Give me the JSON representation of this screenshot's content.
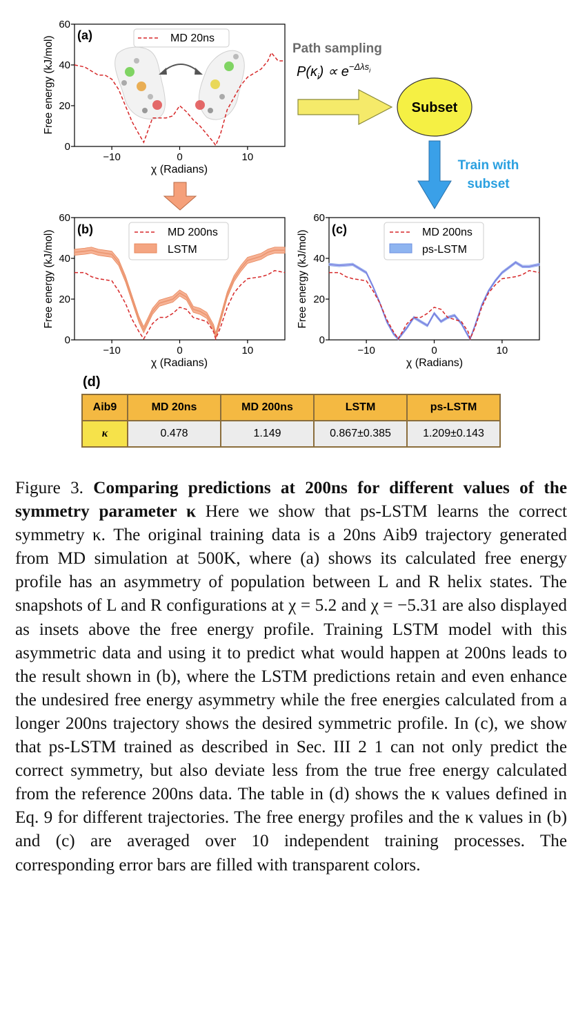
{
  "panel_labels": {
    "a": "(a)",
    "b": "(b)",
    "c": "(c)",
    "d": "(d)"
  },
  "axes": {
    "ylabel": "Free energy (kJ/mol)",
    "xlabel": "χ (Radians)",
    "yticks": [
      "0",
      "20",
      "40",
      "60"
    ],
    "xticks": [
      "−10",
      "0",
      "10"
    ]
  },
  "legend": {
    "md20": "MD 20ns",
    "md200": "MD 200ns",
    "lstm": "LSTM",
    "pslstm": "ps-LSTM"
  },
  "flow": {
    "path_sampling": "Path sampling",
    "formula": "P(κi) ∝ e−Δλsi",
    "subset": "Subset",
    "train_line1": "Train with",
    "train_line2": "subset"
  },
  "colors": {
    "md_red": "#d62728",
    "lstm_fill": "#f4a582",
    "pslstm_blue": "#7b7fe0",
    "arrow_yellow": "#f5ea6a",
    "arrow_orange": "#f5a07a",
    "arrow_blue": "#3aa0e8",
    "train_text": "#2aa0e0",
    "subset_fill": "#f5f044"
  },
  "table": {
    "headers": [
      "Aib9",
      "MD 20ns",
      "MD 200ns",
      "LSTM",
      "ps-LSTM"
    ],
    "row_label": "κ",
    "values": [
      "0.478",
      "1.149",
      "0.867±0.385",
      "1.209±0.143"
    ]
  },
  "chart_data": [
    {
      "panel": "(a)",
      "type": "line",
      "xlabel": "χ (Radians)",
      "ylabel": "Free energy (kJ/mol)",
      "xlim": [
        -15.5,
        15.5
      ],
      "ylim": [
        0,
        60
      ],
      "series": [
        {
          "name": "MD 20ns",
          "style": "dashed",
          "x": [
            -15.5,
            -14,
            -13,
            -12,
            -11,
            -10,
            -9,
            -8,
            -7,
            -6,
            -5.3,
            -4,
            -3,
            -2,
            -1,
            0,
            1,
            2,
            3,
            4,
            5,
            5.3,
            6,
            7,
            8,
            9,
            10,
            11,
            12,
            13,
            13.5,
            14,
            14.5,
            15.5
          ],
          "y": [
            40,
            39,
            37,
            35,
            35,
            33,
            28,
            20,
            12,
            6,
            2,
            14,
            14,
            14,
            15,
            20,
            17,
            13,
            10,
            6,
            2,
            0.5,
            6,
            18,
            24,
            30,
            34,
            36,
            38,
            42,
            46,
            44,
            42,
            42
          ]
        }
      ]
    },
    {
      "panel": "(b)",
      "type": "line",
      "xlabel": "χ (Radians)",
      "ylabel": "Free energy (kJ/mol)",
      "xlim": [
        -15.5,
        15.5
      ],
      "ylim": [
        0,
        60
      ],
      "series": [
        {
          "name": "MD 200ns",
          "style": "dashed",
          "x": [
            -15.5,
            -14,
            -13,
            -12,
            -10,
            -9,
            -8,
            -7,
            -6,
            -5.3,
            -4,
            -3,
            -2,
            -1,
            0,
            1,
            2,
            3,
            4,
            5,
            5.3,
            6,
            7,
            8,
            9,
            10,
            12,
            13,
            14,
            15.5
          ],
          "y": [
            33,
            33,
            31,
            30,
            29,
            24,
            18,
            10,
            4,
            0.5,
            8,
            11,
            11,
            13,
            16,
            15,
            11,
            10,
            9,
            4,
            0.5,
            6,
            16,
            23,
            27,
            30,
            31,
            32,
            34,
            33
          ]
        },
        {
          "name": "LSTM",
          "style": "band",
          "x": [
            -15.5,
            -14,
            -13,
            -12,
            -10,
            -9,
            -8,
            -7,
            -6,
            -5.3,
            -4,
            -3,
            -2,
            -1,
            0,
            1,
            2,
            3,
            4,
            5,
            5.3,
            6,
            7,
            8,
            9,
            10,
            12,
            13,
            14,
            15.5
          ],
          "y": [
            43,
            43.5,
            44,
            43,
            42,
            38,
            30,
            20,
            10,
            5,
            14,
            18,
            19,
            20,
            23,
            21,
            15,
            14,
            12,
            6,
            2,
            10,
            22,
            30,
            35,
            39,
            41,
            43,
            44,
            44
          ],
          "error": 1.5
        }
      ]
    },
    {
      "panel": "(c)",
      "type": "line",
      "xlabel": "χ (Radians)",
      "ylabel": "Free energy (kJ/mol)",
      "xlim": [
        -15.5,
        15.5
      ],
      "ylim": [
        0,
        60
      ],
      "series": [
        {
          "name": "MD 200ns",
          "style": "dashed",
          "x": [
            -15.5,
            -14,
            -13,
            -12,
            -10,
            -9,
            -8,
            -7,
            -6,
            -5.3,
            -4,
            -3,
            -2,
            -1,
            0,
            1,
            2,
            3,
            4,
            5,
            5.3,
            6,
            7,
            8,
            9,
            10,
            12,
            13,
            14,
            15.5
          ],
          "y": [
            33,
            33,
            31,
            30,
            29,
            24,
            18,
            10,
            4,
            0.5,
            8,
            11,
            11,
            13,
            16,
            15,
            11,
            10,
            9,
            4,
            0.5,
            6,
            16,
            23,
            27,
            30,
            31,
            32,
            34,
            33
          ]
        },
        {
          "name": "ps-LSTM",
          "style": "band",
          "x": [
            -15.5,
            -14,
            -12,
            -10,
            -9,
            -8,
            -7,
            -6,
            -5.3,
            -4,
            -3,
            -2,
            -1,
            0,
            1,
            2,
            3,
            4,
            5,
            5.3,
            6,
            7,
            8,
            9,
            10,
            12,
            13,
            14,
            15.5
          ],
          "y": [
            37,
            36.5,
            37,
            33,
            26,
            18,
            9,
            3,
            0.5,
            6,
            11,
            9,
            7,
            13,
            9,
            11,
            12,
            8,
            2,
            0.5,
            7,
            17,
            24,
            29,
            33,
            38,
            36,
            36,
            37
          ],
          "error": 0.6
        }
      ]
    }
  ],
  "caption": {
    "figure_label": "Figure 3.",
    "title": "Comparing predictions at 200ns for different values of the symmetry parameter κ",
    "body": "Here we show that ps-LSTM learns the correct symmetry κ. The original training data is a 20ns Aib9 trajectory generated from MD simulation at 500K, where (a) shows its calculated free energy profile has an asymmetry of population between L and R helix states. The snapshots of L and R configurations at χ = 5.2 and χ = −5.31 are also displayed as insets above the free energy profile. Training LSTM model with this asymmetric data and using it to predict what would happen at 200ns leads to the result shown in (b), where the LSTM predictions retain and even enhance the undesired free energy asymmetry while the free energies calculated from a longer 200ns trajectory shows the desired symmetric profile. In (c), we show that ps-LSTM trained as described in Sec. III 2 1 can not only predict the correct symmetry, but also deviate less from the true free energy calculated from the reference 200ns data. The table in (d) shows the κ values defined in Eq. 9 for different trajectories. The free energy profiles and the κ values in (b) and (c) are averaged over 10 independent training processes. The corresponding error bars are filled with transparent colors."
  }
}
